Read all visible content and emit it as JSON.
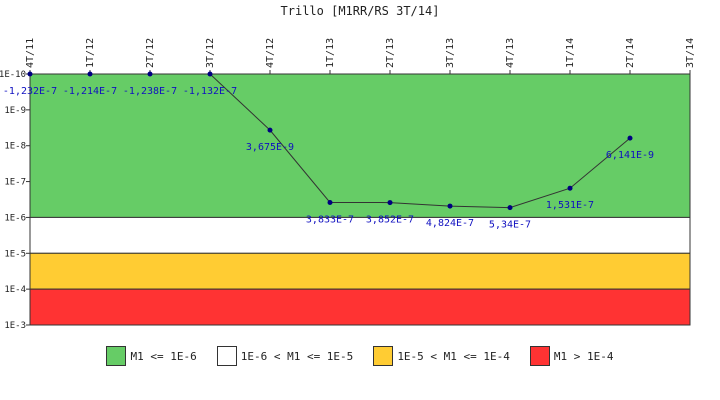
{
  "chart_data": {
    "type": "line",
    "title": "Trillo [M1RR/RS 3T/14]",
    "categories": [
      "4T/11",
      "1T/12",
      "2T/12",
      "3T/12",
      "4T/12",
      "1T/13",
      "2T/13",
      "3T/13",
      "4T/13",
      "1T/14",
      "2T/14",
      "3T/14"
    ],
    "y_ticks": [
      "1E-10",
      "1E-9",
      "1E-8",
      "1E-7",
      "1E-6",
      "1E-5",
      "1E-4",
      "1E-3"
    ],
    "y_scale": "log",
    "y_axis_inverted": true,
    "ylim": [
      1e-10,
      0.001
    ],
    "grid": false,
    "series": [
      {
        "values": [
          -1.232e-07,
          -1.214e-07,
          -1.238e-07,
          -1.132e-07,
          3.675e-09,
          3.833e-07,
          3.852e-07,
          4.824e-07,
          5.34e-07,
          1.531e-07,
          6.141e-09,
          null
        ],
        "labels": [
          "-1,232E-7",
          "-1,214E-7",
          "-1,238E-7",
          "-1,132E-7",
          "3,675E-9",
          "3,833E-7",
          "3,852E-7",
          "4,824E-7",
          "5,34E-7",
          "1,531E-7",
          "6,141E-9",
          ""
        ],
        "line_color": "#333333",
        "point_color": "#000080"
      }
    ],
    "bands": [
      {
        "label": "M1 <= 1E-6",
        "from": 1e-10,
        "to": 1e-06,
        "color": "#66cc66"
      },
      {
        "label": "1E-6 < M1 <= 1E-5",
        "from": 1e-06,
        "to": 1e-05,
        "color": "#ffffff"
      },
      {
        "label": "1E-5 < M1 <= 1E-4",
        "from": 1e-05,
        "to": 0.0001,
        "color": "#ffcc33"
      },
      {
        "label": "M1 > 1E-4",
        "from": 0.0001,
        "to": 0.001,
        "color": "#ff3333"
      }
    ],
    "legend_position": "bottom"
  }
}
